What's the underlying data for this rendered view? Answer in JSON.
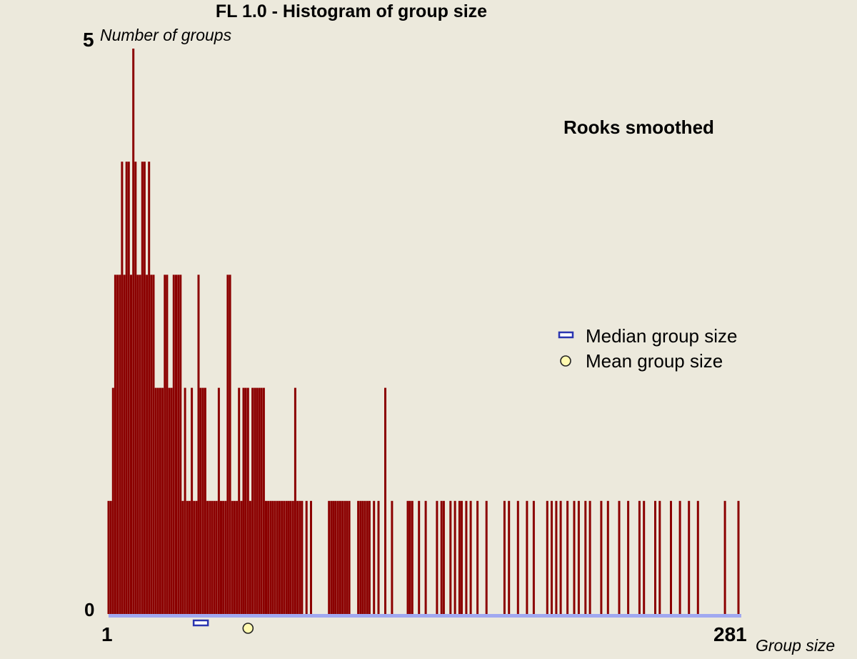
{
  "chart_data": {
    "type": "bar",
    "title": "FL 1.0 - Histogram of group size",
    "annotation": "Rooks smoothed",
    "ylabel": "Number of groups",
    "xlabel": "Group size",
    "x_range": [
      1,
      281
    ],
    "ylim": [
      0,
      5
    ],
    "y_ticks": [
      "0",
      "5"
    ],
    "x_ticks": [
      "1",
      "281"
    ],
    "bar_color": "#8b0000",
    "baseline_color": "#a0a8f0",
    "grid": false,
    "legend_placement": "right",
    "legend": [
      {
        "label": "Median group size",
        "marker": "bar",
        "color": "#2a35b0"
      },
      {
        "label": "Mean group size",
        "marker": "circle",
        "color": "#fff9b0"
      }
    ],
    "median_group_size": 42,
    "mean_group_size": 63,
    "series": [
      {
        "x": [
          1,
          2,
          3,
          4,
          5,
          6,
          7,
          8,
          9,
          10,
          11,
          12,
          13,
          14,
          15,
          16,
          17,
          18,
          19,
          20,
          21,
          22,
          23,
          24,
          25,
          26,
          27,
          28,
          29,
          30,
          31,
          32,
          33,
          34,
          35,
          36,
          37,
          38,
          39,
          40,
          41,
          42,
          43,
          44,
          45,
          46,
          47,
          48,
          49,
          50,
          51,
          52,
          53,
          54,
          55,
          56,
          57,
          58,
          59,
          60,
          61,
          62,
          63,
          64,
          65,
          66,
          67,
          68,
          69,
          70,
          71,
          72,
          73,
          74,
          75,
          76,
          77,
          78,
          79,
          80,
          81,
          82,
          83,
          84,
          85,
          86,
          87,
          89,
          91,
          99,
          100,
          101,
          102,
          103,
          104,
          105,
          106,
          107,
          108,
          112,
          113,
          114,
          115,
          116,
          117,
          119,
          121,
          124,
          127,
          134,
          135,
          136,
          139,
          142,
          147,
          149,
          150,
          153,
          155,
          157,
          158,
          160,
          162,
          165,
          169,
          177,
          179,
          183,
          187,
          190,
          196,
          198,
          200,
          202,
          205,
          208,
          210,
          213,
          215,
          220,
          223,
          228,
          232,
          237,
          239,
          244,
          246,
          251,
          255,
          259,
          263,
          275,
          281
        ],
        "values": [
          1,
          1,
          2,
          3,
          3,
          3,
          4,
          3,
          4,
          4,
          3,
          5,
          4,
          3,
          3,
          4,
          4,
          3,
          4,
          3,
          3,
          2,
          2,
          2,
          2,
          3,
          3,
          2,
          2,
          3,
          3,
          3,
          3,
          1,
          2,
          1,
          1,
          2,
          1,
          1,
          3,
          2,
          2,
          2,
          1,
          1,
          1,
          1,
          1,
          2,
          1,
          1,
          1,
          3,
          3,
          1,
          1,
          1,
          2,
          1,
          2,
          2,
          2,
          1,
          2,
          2,
          2,
          2,
          2,
          2,
          1,
          1,
          1,
          1,
          1,
          1,
          1,
          1,
          1,
          1,
          1,
          1,
          1,
          2,
          1,
          1,
          1,
          1,
          1,
          1,
          1,
          1,
          1,
          1,
          1,
          1,
          1,
          1,
          1,
          1,
          1,
          1,
          1,
          1,
          1,
          1,
          1,
          2,
          1,
          1,
          1,
          1,
          1,
          1,
          1,
          1,
          1,
          1,
          1,
          1,
          1,
          1,
          1,
          1,
          1,
          1,
          1,
          1,
          1,
          1,
          1,
          1,
          1,
          1,
          1,
          1,
          1,
          1,
          1,
          1,
          1,
          1,
          1,
          1,
          1,
          1,
          1,
          1,
          1,
          1,
          1,
          1,
          1
        ]
      }
    ]
  }
}
